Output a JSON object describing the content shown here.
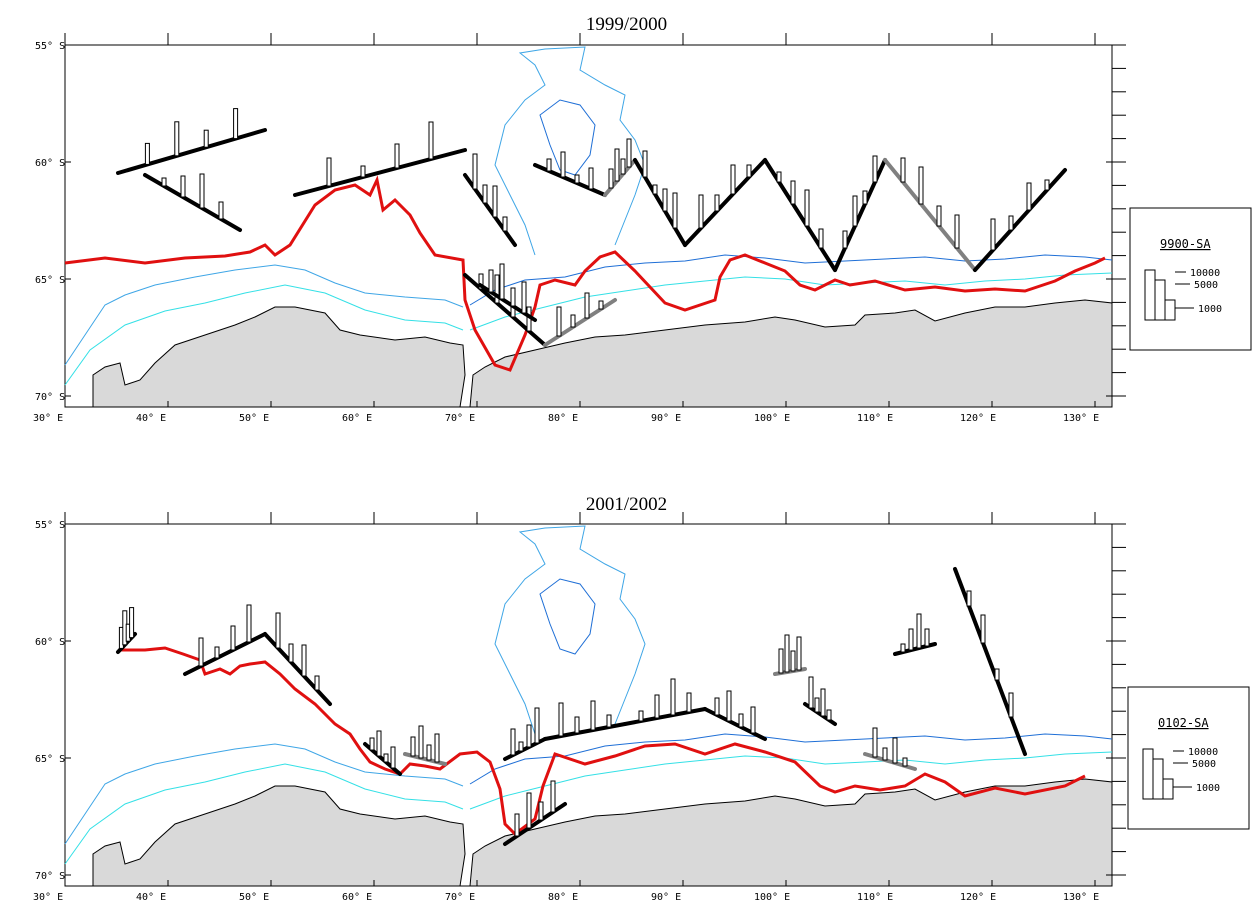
{
  "panels": [
    {
      "title": "1999/2000",
      "legend": {
        "code": "9900-SA",
        "values": [
          "10000",
          "5000",
          "1000"
        ]
      }
    },
    {
      "title": "2001/2002",
      "legend": {
        "code": "0102-SA",
        "values": [
          "10000",
          "5000",
          "1000"
        ]
      }
    }
  ],
  "lat_labels": [
    "55° S",
    "60° S",
    "65° S",
    "70° S"
  ],
  "lon_labels": [
    "30° E",
    "40° E",
    "50° E",
    "60° E",
    "70° E",
    "80° E",
    "90° E",
    "100° E",
    "110° E",
    "120° E",
    "130° E"
  ],
  "colors": {
    "land": "#d9d9d9",
    "coast": "#000000",
    "bathy_deep": "#1f6fd6",
    "bathy_mid": "#3fa6e6",
    "bathy_shallow": "#34e0e6",
    "ice_edge": "#e01010",
    "track_primary": "#000000",
    "track_secondary": "#808080"
  }
}
